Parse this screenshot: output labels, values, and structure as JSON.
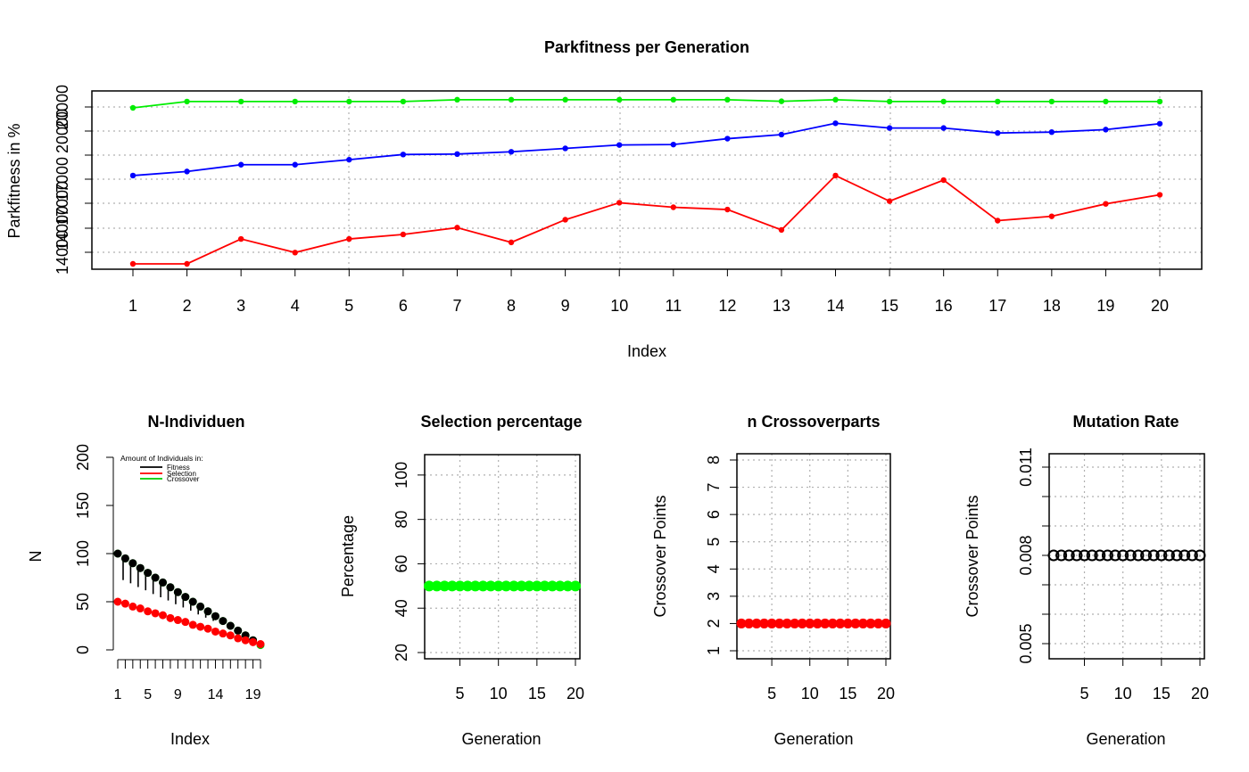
{
  "chart_data": [
    {
      "type": "line",
      "title": "Parkfitness per Generation",
      "xlabel": "Index",
      "ylabel": "Parkfitness in %",
      "x": [
        1,
        2,
        3,
        4,
        5,
        6,
        7,
        8,
        9,
        10,
        11,
        12,
        13,
        14,
        15,
        16,
        17,
        18,
        19,
        20
      ],
      "xlim": [
        1,
        20
      ],
      "ylim": [
        13600,
        20700
      ],
      "y_tick_labels": [
        "14000",
        "17000",
        "20000"
      ],
      "grid": true,
      "series": [
        {
          "color": "#ff0000",
          "values": [
            13550,
            13550,
            14650,
            14050,
            14650,
            14850,
            15150,
            14500,
            15500,
            16250,
            16050,
            15950,
            15050,
            17450,
            16320,
            17250,
            15460,
            15650,
            16200,
            16600
          ]
        },
        {
          "color": "#0000ff",
          "values": [
            17450,
            17630,
            17930,
            17930,
            18150,
            18380,
            18400,
            18500,
            18650,
            18800,
            18820,
            19080,
            19260,
            19760,
            19550,
            19550,
            19330,
            19370,
            19480,
            19740
          ]
        },
        {
          "color": "#00ee00",
          "values": [
            20440,
            20720,
            20720,
            20720,
            20720,
            20720,
            20800,
            20800,
            20800,
            20800,
            20800,
            20800,
            20730,
            20800,
            20720,
            20720,
            20720,
            20720,
            20720,
            20720
          ]
        }
      ]
    },
    {
      "type": "line",
      "title": "N-Individuen",
      "xlabel": "Index",
      "ylabel": "N",
      "xlim": [
        1,
        20
      ],
      "ylim": [
        0,
        200
      ],
      "y_ticks": [
        0,
        50,
        100,
        150,
        200
      ],
      "x_tick_labels": [
        "1",
        "5",
        "9",
        "14",
        "19"
      ],
      "legend": {
        "title": "Amount of Individuals in:",
        "position": "top",
        "entries": [
          {
            "label": "Fitness",
            "color": "#000000"
          },
          {
            "label": "Selection",
            "color": "#ff0000"
          },
          {
            "label": "Crossover",
            "color": "#00cc00"
          }
        ]
      },
      "series": [
        {
          "name": "Fitness",
          "color": "#000000",
          "values": [
            100,
            95,
            90,
            85,
            80,
            75,
            70,
            65,
            60,
            55,
            50,
            45,
            40,
            35,
            30,
            25,
            20,
            15,
            10,
            5
          ]
        },
        {
          "name": "Selection",
          "color": "#ff0000",
          "values": [
            50,
            48,
            45,
            43,
            40,
            38,
            36,
            33,
            31,
            29,
            26,
            24,
            22,
            19,
            17,
            15,
            12,
            10,
            8,
            6
          ]
        },
        {
          "name": "Crossover",
          "color": "#00cc00",
          "values": [
            100,
            95,
            90,
            85,
            80,
            75,
            70,
            65,
            60,
            55,
            50,
            45,
            40,
            35,
            30,
            25,
            20,
            15,
            10,
            5
          ]
        }
      ]
    },
    {
      "type": "scatter",
      "title": "Selection percentage",
      "xlabel": "Generation",
      "ylabel": "Percentage",
      "xlim": [
        1,
        20
      ],
      "ylim": [
        20,
        110
      ],
      "y_ticks": [
        20,
        40,
        60,
        80,
        100
      ],
      "x_ticks": [
        5,
        10,
        15,
        20
      ],
      "grid": true,
      "series": [
        {
          "color": "#00ff00",
          "values": [
            50,
            50,
            50,
            50,
            50,
            50,
            50,
            50,
            50,
            50,
            50,
            50,
            50,
            50,
            50,
            50,
            50,
            50,
            50,
            50
          ]
        }
      ]
    },
    {
      "type": "scatter",
      "title": "n Crossoverparts",
      "xlabel": "Generation",
      "ylabel": "Crossover Points",
      "xlim": [
        1,
        20
      ],
      "ylim": [
        1,
        8
      ],
      "y_ticks": [
        1,
        2,
        3,
        4,
        5,
        6,
        7,
        8
      ],
      "x_ticks": [
        5,
        10,
        15,
        20
      ],
      "grid": true,
      "series": [
        {
          "color": "#ff0000",
          "values": [
            2,
            2,
            2,
            2,
            2,
            2,
            2,
            2,
            2,
            2,
            2,
            2,
            2,
            2,
            2,
            2,
            2,
            2,
            2,
            2
          ]
        }
      ]
    },
    {
      "type": "scatter",
      "title": "Mutation Rate",
      "xlabel": "Generation",
      "ylabel": "Crossover Points",
      "xlim": [
        1,
        20
      ],
      "ylim": [
        0.004,
        0.012
      ],
      "y_tick_labels": [
        "0.005",
        "0.008",
        "0.011"
      ],
      "x_ticks": [
        5,
        10,
        15,
        20
      ],
      "grid": true,
      "series": [
        {
          "color": "#000000",
          "values": [
            0.008,
            0.008,
            0.008,
            0.008,
            0.008,
            0.008,
            0.008,
            0.008,
            0.008,
            0.008,
            0.008,
            0.008,
            0.008,
            0.008,
            0.008,
            0.008,
            0.008,
            0.008,
            0.008,
            0.008
          ]
        }
      ]
    }
  ]
}
